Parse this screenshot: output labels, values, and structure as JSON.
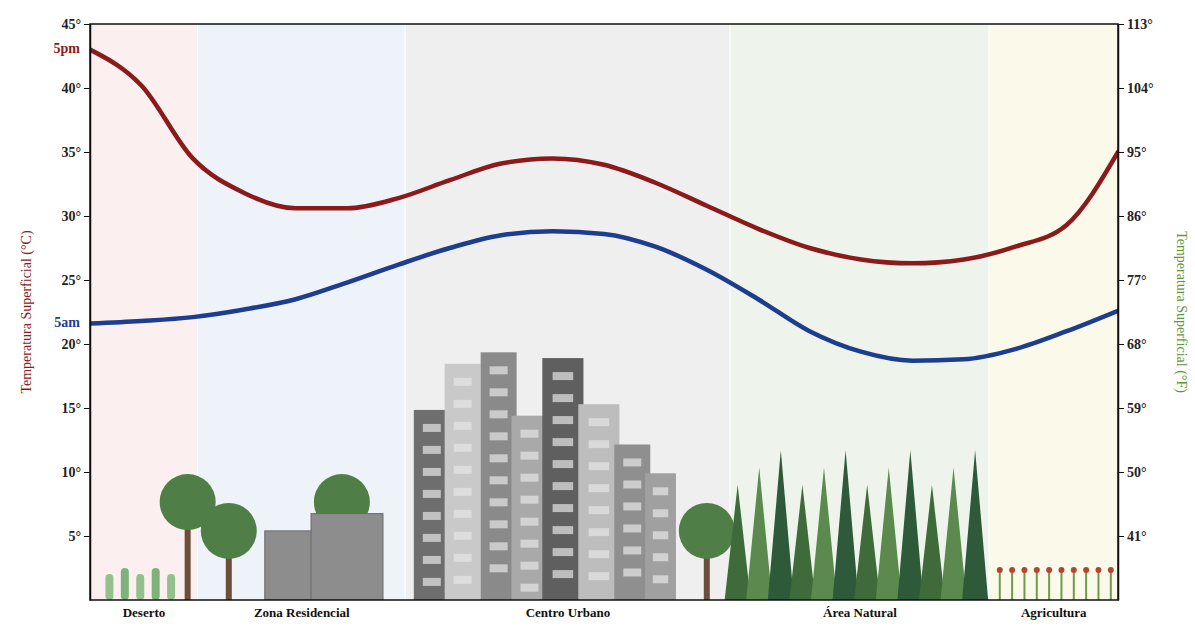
{
  "chart_data": {
    "type": "line",
    "x": [
      0,
      5,
      10,
      15,
      20,
      25,
      30,
      35,
      40,
      45,
      50,
      55,
      60,
      65,
      70,
      75,
      80,
      85,
      90,
      95,
      100
    ],
    "xlim": [
      0,
      100
    ],
    "ylim": [
      0,
      45
    ],
    "yticks": [
      {
        "value": 5,
        "label": "5°"
      },
      {
        "value": 10,
        "label": "10°"
      },
      {
        "value": 15,
        "label": "15°"
      },
      {
        "value": 20,
        "label": "20°"
      },
      {
        "value": 25,
        "label": "25°"
      },
      {
        "value": 30,
        "label": "30°"
      },
      {
        "value": 35,
        "label": "35°"
      },
      {
        "value": 40,
        "label": "40°"
      },
      {
        "value": 45,
        "label": "45°"
      }
    ],
    "y_label": "Temperatura Superficial (°C)",
    "y2lim": [
      32,
      113
    ],
    "y2ticks": [
      {
        "value": 41,
        "label": "41°"
      },
      {
        "value": 50,
        "label": "50°"
      },
      {
        "value": 59,
        "label": "59°"
      },
      {
        "value": 68,
        "label": "68°"
      },
      {
        "value": 77,
        "label": "77°"
      },
      {
        "value": 86,
        "label": "86°"
      },
      {
        "value": 95,
        "label": "95°"
      },
      {
        "value": 104,
        "label": "104°"
      },
      {
        "value": 113,
        "label": "113°"
      }
    ],
    "y2_label": "Temperatura Superficial (°F)",
    "grid": false,
    "series": [
      {
        "name": "5pm",
        "color": "#8b1a1a",
        "values": [
          43,
          40.2,
          34.5,
          31.8,
          30.6,
          30.6,
          31.4,
          32.8,
          34.1,
          34.5,
          34.0,
          32.6,
          30.8,
          29.0,
          27.5,
          26.6,
          26.3,
          26.6,
          27.6,
          29.3,
          35
        ]
      },
      {
        "name": "5am",
        "color": "#1d3d8f",
        "values": [
          21.6,
          21.8,
          22.1,
          22.7,
          23.5,
          24.8,
          26.2,
          27.5,
          28.5,
          28.8,
          28.6,
          27.6,
          25.8,
          23.5,
          21.0,
          19.4,
          18.7,
          18.8,
          19.6,
          21.0,
          22.6
        ]
      }
    ],
    "regions": [
      {
        "label": "Deserto",
        "from": 0,
        "to": 10.5,
        "color": "#fcefef"
      },
      {
        "label": "Zona Residencial",
        "from": 10.5,
        "to": 30.7,
        "color": "#eef2f9"
      },
      {
        "label": "Centro Urbano",
        "from": 30.7,
        "to": 62.3,
        "color": "#efefef"
      },
      {
        "label": "Área Natural",
        "from": 62.3,
        "to": 87.5,
        "color": "#eef3ec"
      },
      {
        "label": "Agricultura",
        "from": 87.5,
        "to": 100,
        "color": "#fbfaea"
      }
    ]
  }
}
